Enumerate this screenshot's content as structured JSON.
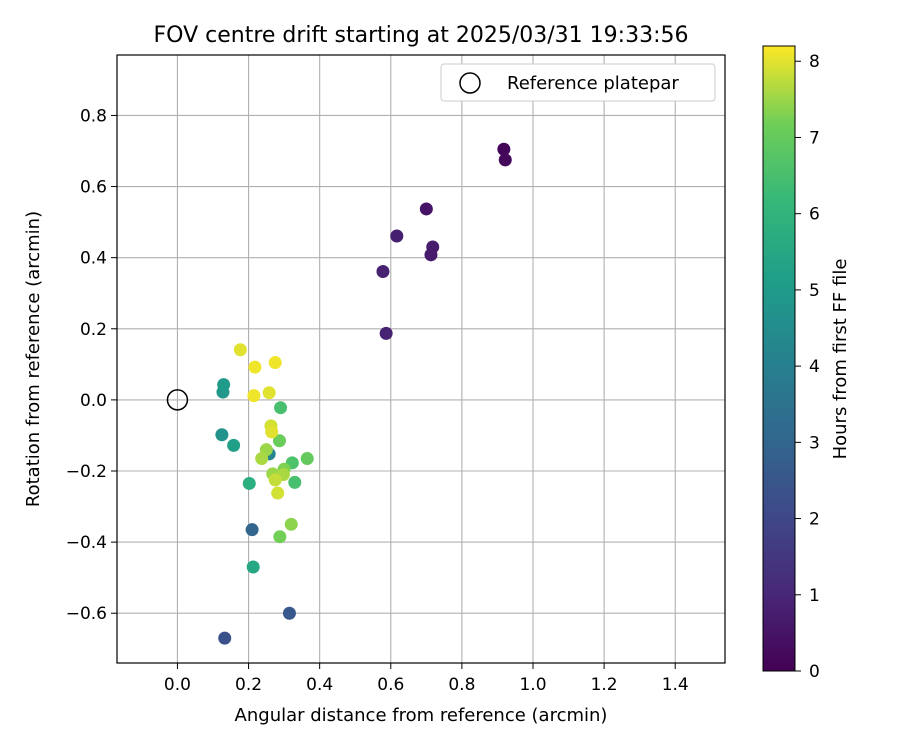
{
  "chart_data": {
    "type": "scatter",
    "title": "FOV centre drift starting at 2025/03/31 19:33:56",
    "xlabel": "Angular distance from reference (arcmin)",
    "ylabel": "Rotation from reference (arcmin)",
    "xlim": [
      -0.17,
      1.54
    ],
    "ylim": [
      -0.74,
      0.97
    ],
    "xticks": [
      0.0,
      0.2,
      0.4,
      0.6,
      0.8,
      1.0,
      1.2,
      1.4
    ],
    "xtick_labels": [
      "0.0",
      "0.2",
      "0.4",
      "0.6",
      "0.8",
      "1.0",
      "1.2",
      "1.4"
    ],
    "yticks": [
      -0.6,
      -0.4,
      -0.2,
      0.0,
      0.2,
      0.4,
      0.6,
      0.8
    ],
    "ytick_labels": [
      "−0.6",
      "−0.4",
      "−0.2",
      "0.0",
      "0.2",
      "0.4",
      "0.6",
      "0.8"
    ],
    "grid": true,
    "legend": {
      "placement": "top-right",
      "entries": [
        "Reference platepar"
      ]
    },
    "reference_point": {
      "x": 0.0,
      "y": 0.0,
      "label": "Reference platepar"
    },
    "colorbar": {
      "label": "Hours from first FF file",
      "range": [
        0,
        8.2
      ],
      "ticks": [
        0,
        1,
        2,
        3,
        4,
        5,
        6,
        7,
        8
      ],
      "tick_labels": [
        "0",
        "1",
        "2",
        "3",
        "4",
        "5",
        "6",
        "7",
        "8"
      ],
      "colormap": "viridis"
    },
    "points": [
      {
        "x": 0.918,
        "y": 0.705,
        "h": 0.1
      },
      {
        "x": 0.922,
        "y": 0.675,
        "h": 0.2
      },
      {
        "x": 0.7,
        "y": 0.537,
        "h": 0.5
      },
      {
        "x": 0.718,
        "y": 0.43,
        "h": 0.7
      },
      {
        "x": 0.713,
        "y": 0.408,
        "h": 0.7
      },
      {
        "x": 0.617,
        "y": 0.461,
        "h": 0.8
      },
      {
        "x": 0.578,
        "y": 0.361,
        "h": 0.9
      },
      {
        "x": 0.587,
        "y": 0.187,
        "h": 0.9
      },
      {
        "x": 0.315,
        "y": -0.6,
        "h": 2.5
      },
      {
        "x": 0.133,
        "y": -0.67,
        "h": 2.3
      },
      {
        "x": 0.21,
        "y": -0.365,
        "h": 3.0
      },
      {
        "x": 0.258,
        "y": -0.152,
        "h": 4.2
      },
      {
        "x": 0.13,
        "y": 0.043,
        "h": 5.0
      },
      {
        "x": 0.128,
        "y": 0.022,
        "h": 4.9
      },
      {
        "x": 0.125,
        "y": -0.098,
        "h": 4.7
      },
      {
        "x": 0.158,
        "y": -0.128,
        "h": 5.2
      },
      {
        "x": 0.213,
        "y": -0.47,
        "h": 5.5
      },
      {
        "x": 0.202,
        "y": -0.235,
        "h": 5.8
      },
      {
        "x": 0.29,
        "y": -0.022,
        "h": 6.5
      },
      {
        "x": 0.33,
        "y": -0.232,
        "h": 6.5
      },
      {
        "x": 0.323,
        "y": -0.177,
        "h": 6.6
      },
      {
        "x": 0.365,
        "y": -0.165,
        "h": 7.0
      },
      {
        "x": 0.287,
        "y": -0.115,
        "h": 7.1
      },
      {
        "x": 0.3,
        "y": -0.195,
        "h": 7.3
      },
      {
        "x": 0.288,
        "y": -0.385,
        "h": 7.2
      },
      {
        "x": 0.32,
        "y": -0.35,
        "h": 7.4
      },
      {
        "x": 0.25,
        "y": -0.14,
        "h": 7.5
      },
      {
        "x": 0.237,
        "y": -0.165,
        "h": 7.6
      },
      {
        "x": 0.268,
        "y": -0.208,
        "h": 7.5
      },
      {
        "x": 0.298,
        "y": -0.21,
        "h": 7.6
      },
      {
        "x": 0.275,
        "y": -0.225,
        "h": 7.8
      },
      {
        "x": 0.282,
        "y": -0.262,
        "h": 7.9
      },
      {
        "x": 0.263,
        "y": -0.073,
        "h": 7.9
      },
      {
        "x": 0.265,
        "y": -0.09,
        "h": 8.0
      },
      {
        "x": 0.258,
        "y": 0.02,
        "h": 8.0
      },
      {
        "x": 0.215,
        "y": 0.012,
        "h": 8.1
      },
      {
        "x": 0.218,
        "y": 0.092,
        "h": 8.1
      },
      {
        "x": 0.177,
        "y": 0.141,
        "h": 8.0
      },
      {
        "x": 0.275,
        "y": 0.105,
        "h": 8.1
      }
    ]
  }
}
